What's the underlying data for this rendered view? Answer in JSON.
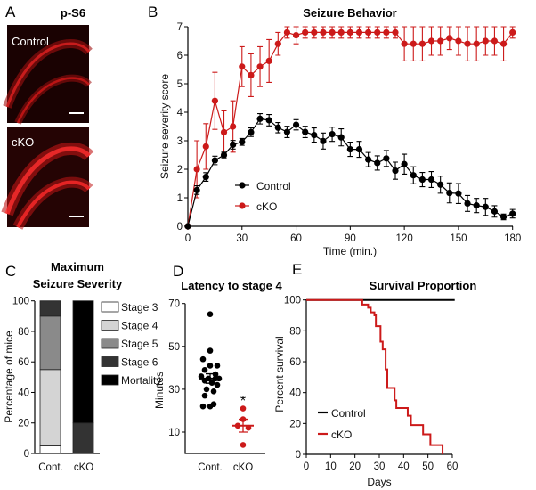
{
  "panel_labels": {
    "a": "A",
    "b": "B",
    "c": "C",
    "d": "D",
    "e": "E"
  },
  "panel_a": {
    "title": "p-S6",
    "top_label": "Control",
    "bottom_label": "cKO"
  },
  "colors": {
    "control": "#000000",
    "cko": "#cc1a1a"
  },
  "chart_data": [
    {
      "id": "B",
      "type": "line",
      "title": "Seizure Behavior",
      "xlabel": "Time (min.)",
      "ylabel": "Seizure severity score",
      "xlim": [
        0,
        180
      ],
      "ylim": [
        0,
        7
      ],
      "xticks": [
        0,
        30,
        60,
        90,
        120,
        150,
        180
      ],
      "yticks": [
        0,
        1,
        2,
        3,
        4,
        5,
        6,
        7
      ],
      "legend": "center-left",
      "x": [
        0,
        5,
        10,
        15,
        20,
        25,
        30,
        35,
        40,
        45,
        50,
        55,
        60,
        65,
        70,
        75,
        80,
        85,
        90,
        95,
        100,
        105,
        110,
        115,
        120,
        125,
        130,
        135,
        140,
        145,
        150,
        155,
        160,
        165,
        170,
        175,
        180
      ],
      "series": [
        {
          "name": "Control",
          "values": [
            0,
            1.27,
            1.73,
            2.31,
            2.5,
            2.86,
            2.96,
            3.3,
            3.77,
            3.72,
            3.46,
            3.31,
            3.56,
            3.31,
            3.2,
            2.99,
            3.23,
            3.12,
            2.7,
            2.7,
            2.34,
            2.22,
            2.38,
            1.95,
            2.18,
            1.79,
            1.64,
            1.64,
            1.46,
            1.17,
            1.15,
            0.8,
            0.73,
            0.68,
            0.52,
            0.33,
            0.44
          ],
          "error": [
            0,
            0.15,
            0.15,
            0.15,
            0.1,
            0.15,
            0.12,
            0.15,
            0.18,
            0.2,
            0.18,
            0.2,
            0.18,
            0.2,
            0.25,
            0.28,
            0.25,
            0.3,
            0.25,
            0.28,
            0.25,
            0.25,
            0.28,
            0.3,
            0.35,
            0.3,
            0.25,
            0.28,
            0.3,
            0.35,
            0.35,
            0.28,
            0.25,
            0.3,
            0.2,
            0.1,
            0.15
          ]
        },
        {
          "name": "cKO",
          "values": [
            0,
            2.0,
            2.8,
            4.4,
            3.3,
            3.5,
            5.6,
            5.3,
            5.6,
            5.8,
            6.4,
            6.8,
            6.7,
            6.8,
            6.8,
            6.8,
            6.8,
            6.8,
            6.8,
            6.8,
            6.8,
            6.8,
            6.8,
            6.8,
            6.4,
            6.4,
            6.4,
            6.5,
            6.5,
            6.6,
            6.5,
            6.4,
            6.4,
            6.5,
            6.5,
            6.4,
            6.8
          ],
          "error": [
            0,
            1.0,
            0.8,
            1.0,
            0.75,
            0.9,
            0.7,
            0.75,
            0.7,
            0.75,
            0.4,
            0.2,
            0.3,
            0.2,
            0.2,
            0.2,
            0.2,
            0.2,
            0.2,
            0.2,
            0.2,
            0.2,
            0.2,
            0.2,
            0.6,
            0.6,
            0.6,
            0.5,
            0.5,
            0.4,
            0.5,
            0.6,
            0.6,
            0.5,
            0.5,
            0.6,
            0.2
          ]
        }
      ]
    },
    {
      "id": "C",
      "type": "bar",
      "stacked": true,
      "title": [
        "Maximum",
        "Seizure Severity"
      ],
      "ylabel": "Percentage of mice",
      "ylim": [
        0,
        100
      ],
      "yticks": [
        0,
        20,
        40,
        60,
        80,
        100
      ],
      "categories": [
        "Cont.",
        "cKO"
      ],
      "legend": "right",
      "series": [
        {
          "name": "Stage 3",
          "color": "#ffffff",
          "values": [
            5,
            0
          ]
        },
        {
          "name": "Stage 4",
          "color": "#d4d4d4",
          "values": [
            50,
            0
          ]
        },
        {
          "name": "Stage 5",
          "color": "#8a8a8a",
          "values": [
            35,
            0
          ]
        },
        {
          "name": "Stage 6",
          "color": "#333333",
          "values": [
            10,
            20
          ]
        },
        {
          "name": "Mortality",
          "color": "#000000",
          "values": [
            0,
            80
          ]
        }
      ]
    },
    {
      "id": "D",
      "type": "scatter",
      "title": "Latency to stage 4",
      "ylabel": "Minutes",
      "ylim": [
        0,
        70
      ],
      "yticks": [
        10,
        30,
        50,
        70
      ],
      "categories": [
        "Cont.",
        "cKO"
      ],
      "annotation": "*",
      "groups": [
        {
          "name": "Cont.",
          "values": [
            65,
            48,
            44,
            41,
            41,
            39,
            37,
            36,
            35,
            35,
            35,
            34,
            33,
            32,
            30,
            29,
            27,
            23,
            22,
            22
          ],
          "mean": 35,
          "sem": 2.2
        },
        {
          "name": "cKO",
          "values": [
            21,
            16,
            13,
            12,
            4
          ],
          "mean": 13,
          "sem": 3
        }
      ]
    },
    {
      "id": "E",
      "type": "line",
      "step": true,
      "title": "Survival Proportion",
      "xlabel": "Days",
      "ylabel": "Percent survival",
      "xlim": [
        0,
        60
      ],
      "ylim": [
        0,
        100
      ],
      "xticks": [
        0,
        10,
        20,
        30,
        40,
        50,
        60
      ],
      "yticks": [
        0,
        20,
        40,
        60,
        80,
        100
      ],
      "legend": "bottom-left",
      "series": [
        {
          "name": "Control",
          "x": [
            0,
            61
          ],
          "y": [
            100,
            100
          ]
        },
        {
          "name": "cKO",
          "x": [
            0,
            23,
            25.4,
            26.5,
            28,
            28.6,
            30.5,
            31.4,
            32.6,
            33.3,
            36.3,
            37,
            41.7,
            43,
            48,
            51,
            56
          ],
          "y": [
            100,
            97,
            95,
            92,
            90,
            83,
            73,
            68,
            55,
            43,
            35,
            30,
            25,
            19,
            13,
            6,
            0
          ]
        }
      ]
    }
  ]
}
